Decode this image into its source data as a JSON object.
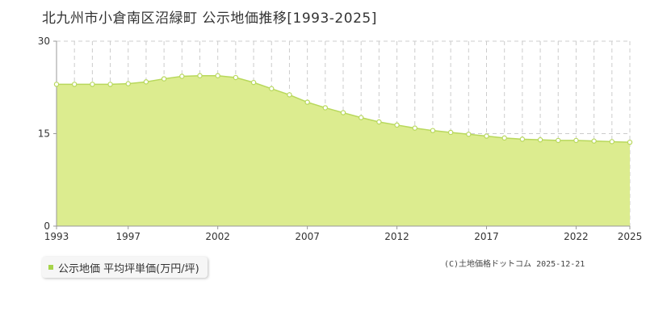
{
  "title": "北九州市小倉南区沼緑町 公示地価推移[1993-2025]",
  "legend": {
    "label": "公示地価 平均坪単価(万円/坪)"
  },
  "copyright": "(C)土地価格ドットコム 2025-12-21",
  "colors": {
    "fill": "#dcec8f",
    "line": "#b8d85c",
    "marker_fill": "#ffffff",
    "grid": "#cccccc",
    "legend_swatch": "#a6d44a"
  },
  "chart_data": {
    "type": "area",
    "title": "北九州市小倉南区沼緑町 公示地価推移[1993-2025]",
    "xlabel": "",
    "ylabel": "",
    "ylim": [
      0,
      30
    ],
    "yticks": [
      0,
      15,
      30
    ],
    "xlim": [
      1993,
      2025
    ],
    "xticks": [
      1993,
      1997,
      2002,
      2007,
      2012,
      2017,
      2022,
      2025
    ],
    "grid": true,
    "legend_position": "bottom-left",
    "series": [
      {
        "name": "公示地価 平均坪単価(万円/坪)",
        "x": [
          1993,
          1994,
          1995,
          1996,
          1997,
          1998,
          1999,
          2000,
          2001,
          2002,
          2003,
          2004,
          2005,
          2006,
          2007,
          2008,
          2009,
          2010,
          2011,
          2012,
          2013,
          2014,
          2015,
          2016,
          2017,
          2018,
          2019,
          2020,
          2021,
          2022,
          2023,
          2024,
          2025
        ],
        "values": [
          23.0,
          23.0,
          23.0,
          23.0,
          23.1,
          23.4,
          23.9,
          24.3,
          24.4,
          24.4,
          24.1,
          23.3,
          22.3,
          21.3,
          20.1,
          19.2,
          18.4,
          17.6,
          16.9,
          16.4,
          15.9,
          15.5,
          15.2,
          14.9,
          14.6,
          14.3,
          14.1,
          14.0,
          13.9,
          13.9,
          13.8,
          13.7,
          13.6
        ]
      }
    ]
  }
}
